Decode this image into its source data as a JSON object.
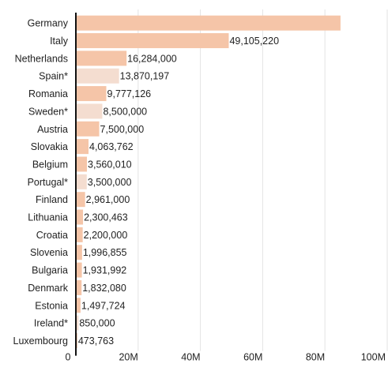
{
  "chart_data": {
    "type": "bar",
    "orientation": "horizontal",
    "title": "",
    "xlabel": "",
    "ylabel": "",
    "xlim": [
      0,
      100000000
    ],
    "grid": true,
    "colors": {
      "standard": "#f5c5a8",
      "estimated": "#f4ddd0"
    },
    "categories": [
      "Germany",
      "Italy",
      "Netherlands",
      "Spain*",
      "Romania",
      "Sweden*",
      "Austria",
      "Slovakia",
      "Belgium",
      "Portugal*",
      "Finland",
      "Lithuania",
      "Croatia",
      "Slovenia",
      "Bulgaria",
      "Denmark",
      "Estonia",
      "Ireland*",
      "Luxembourg"
    ],
    "values": [
      85000000,
      49105220,
      16284000,
      13870197,
      9777126,
      8500000,
      7500000,
      4063762,
      3560010,
      3500000,
      2961000,
      2300463,
      2200000,
      1996855,
      1931992,
      1832080,
      1497724,
      850000,
      473763
    ],
    "value_labels": [
      "",
      "49,105,220",
      "16,284,000",
      "13,870,197",
      "9,777,126",
      "8,500,000",
      "7,500,000",
      "4,063,762",
      "3,560,010",
      "3,500,000",
      "2,961,000",
      "2,300,463",
      "2,200,000",
      "1,996,855",
      "1,931,992",
      "1,832,080",
      "1,497,724",
      "850,000",
      "473,763"
    ],
    "estimated": [
      false,
      false,
      false,
      true,
      false,
      true,
      false,
      false,
      false,
      true,
      false,
      false,
      false,
      false,
      false,
      false,
      false,
      true,
      false
    ],
    "ticks": [
      0,
      20000000,
      40000000,
      60000000,
      80000000,
      100000000
    ],
    "tick_labels": [
      "0",
      "20M",
      "40M",
      "60M",
      "80M",
      "100M"
    ]
  }
}
